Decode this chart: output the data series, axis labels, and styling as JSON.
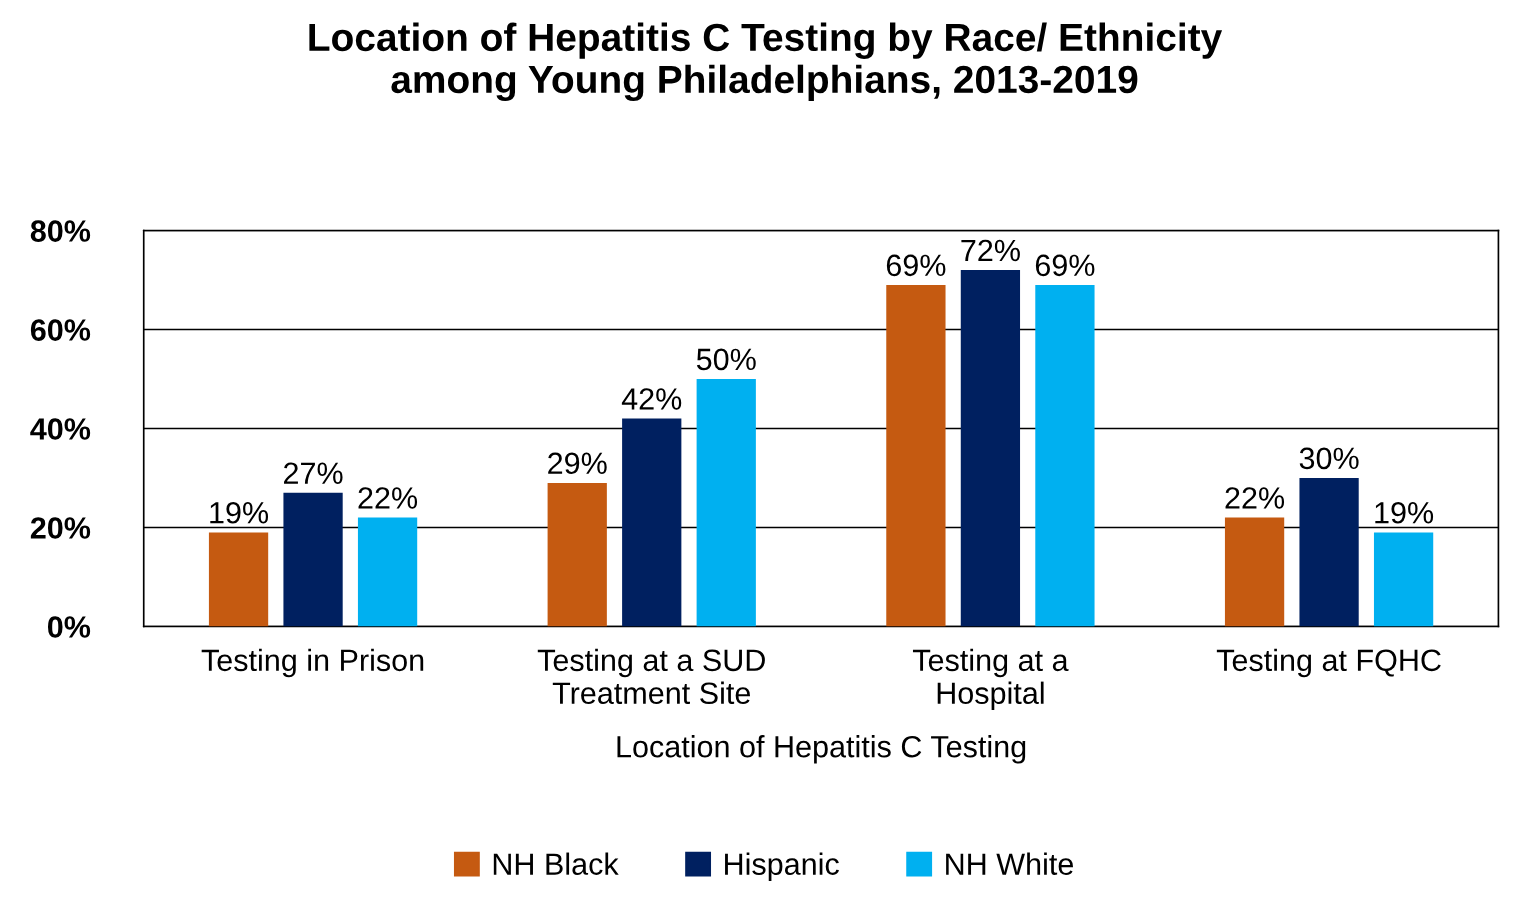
{
  "chart_data": {
    "type": "bar",
    "title": "Location of Hepatitis C Testing by Race/ Ethnicity\namong Young Philadelphians, 2013-2019",
    "xlabel": "Location of Hepatitis C Testing",
    "categories": [
      "Testing in Prison",
      "Testing at a SUD\nTreatment Site",
      "Testing at a\nHospital",
      "Testing at FQHC"
    ],
    "series": [
      {
        "name": "NH Black",
        "color": "#c55a11",
        "values": [
          19,
          29,
          69,
          22
        ],
        "value_labels": [
          "19%",
          "29%",
          "69%",
          "22%"
        ]
      },
      {
        "name": "Hispanic",
        "color": "#002060",
        "values": [
          27,
          42,
          72,
          30
        ],
        "value_labels": [
          "27%",
          "42%",
          "72%",
          "30%"
        ]
      },
      {
        "name": "NH White",
        "color": "#00b0f0",
        "values": [
          22,
          50,
          69,
          19
        ],
        "value_labels": [
          "22%",
          "50%",
          "69%",
          "19%"
        ]
      }
    ],
    "ylim": [
      0,
      80
    ],
    "yticks": [
      {
        "value": 0,
        "label": "0%"
      },
      {
        "value": 20,
        "label": "20%"
      },
      {
        "value": 40,
        "label": "40%"
      },
      {
        "value": 60,
        "label": "60%"
      },
      {
        "value": 80,
        "label": "80%"
      }
    ],
    "grid": "y",
    "legend": "bottom"
  }
}
